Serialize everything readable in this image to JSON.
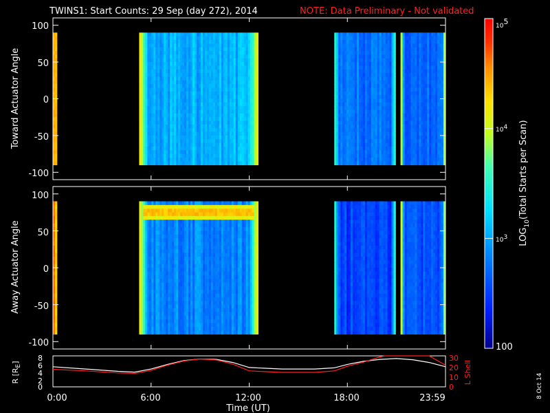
{
  "header": {
    "title": "TWINS1: Start Counts: 29 Sep (day 272), 2014",
    "note": "NOTE: Data Preliminary - Not validated"
  },
  "footer": {
    "date_stamp": "8 Oct 14"
  },
  "colors": {
    "background": "#000000",
    "axes": "#ffffff",
    "note": "#ff2020",
    "r_line": "#ffffff",
    "lshell_line": "#ff2020"
  },
  "chart_data": [
    {
      "type": "heatmap",
      "panel": "toward",
      "ylabel": "Toward Actuator Angle",
      "xlim": [
        0,
        24
      ],
      "ylim": [
        -110,
        110
      ],
      "yticks": [
        100,
        50,
        0,
        -50,
        -100
      ],
      "xticks": [
        0,
        6,
        12,
        18,
        24
      ],
      "colormap": "rainbow",
      "value_scale": "log",
      "data_segments": [
        {
          "start": 0.0,
          "end": 0.25,
          "base_log": 4.45
        },
        {
          "start": 5.27,
          "end": 12.55,
          "base_log": 3.05,
          "edge_log": 4.3
        },
        {
          "start": 17.2,
          "end": 20.95,
          "base_log": 2.75,
          "edge_log": 3.7
        },
        {
          "start": 21.25,
          "end": 24.0,
          "base_log": 2.7,
          "edge_log": 4.4
        }
      ],
      "angle_range": [
        -90,
        90
      ]
    },
    {
      "type": "heatmap",
      "panel": "away",
      "ylabel": "Away Actuator Angle",
      "xlim": [
        0,
        24
      ],
      "ylim": [
        -110,
        110
      ],
      "yticks": [
        100,
        50,
        0,
        -50,
        -100
      ],
      "xticks": [
        0,
        6,
        12,
        18,
        24
      ],
      "colormap": "rainbow",
      "value_scale": "log",
      "data_segments": [
        {
          "start": 0.0,
          "end": 0.25,
          "base_log": 4.5
        },
        {
          "start": 5.27,
          "end": 12.55,
          "base_log": 2.85,
          "edge_log": 4.3,
          "band_angle": 75,
          "band_log": 4.5
        },
        {
          "start": 17.2,
          "end": 20.95,
          "base_log": 2.5,
          "edge_log": 3.7
        },
        {
          "start": 21.25,
          "end": 24.0,
          "base_log": 2.6,
          "edge_log": 4.4
        }
      ],
      "angle_range": [
        -90,
        90
      ]
    },
    {
      "type": "colorbar",
      "label": "LOG10(Total Starts per Scan)",
      "ticks": [
        "10^5",
        "10^4",
        "10^3",
        "100"
      ],
      "range_log": [
        2,
        5
      ]
    },
    {
      "type": "line",
      "panel": "orbit",
      "xlabel": "Time (UT)",
      "xticks": [
        "0:00",
        "6:00",
        "12:00",
        "18:00",
        "23:59"
      ],
      "x_hours": [
        0,
        6,
        12,
        18,
        24
      ],
      "y_left": {
        "label": "R [RE]",
        "ticks": [
          0,
          2,
          4,
          6,
          8
        ],
        "range": [
          0,
          8
        ]
      },
      "y_right": {
        "label": "L Shell",
        "ticks": [
          0,
          10,
          20,
          30
        ],
        "range": [
          0,
          30
        ]
      },
      "series": [
        {
          "name": "R",
          "axis": "left",
          "x": [
            0,
            2,
            4,
            5,
            6,
            7,
            8,
            9,
            10,
            11,
            12,
            14,
            16,
            17.2,
            18,
            19,
            20,
            21,
            22,
            23,
            24
          ],
          "y": [
            5.2,
            4.6,
            4.0,
            3.8,
            4.6,
            5.8,
            6.8,
            7.2,
            7.1,
            6.3,
            5.0,
            4.6,
            4.6,
            4.9,
            5.8,
            6.6,
            7.1,
            7.3,
            7.0,
            6.3,
            5.2
          ]
        },
        {
          "name": "L Shell",
          "axis": "right",
          "x": [
            0,
            2,
            4,
            5,
            6,
            7,
            8,
            9,
            10,
            11,
            12,
            14,
            16,
            17.2,
            18,
            19,
            20,
            20.3,
            23.0,
            24
          ],
          "y": [
            17,
            15.5,
            13.5,
            13,
            16,
            21,
            25,
            27,
            26,
            22,
            15.5,
            14,
            14,
            15.5,
            20,
            24,
            29,
            31,
            31,
            21
          ]
        }
      ]
    }
  ],
  "axis_text": {
    "toward_ylabel": "Toward Actuator Angle",
    "away_ylabel": "Away Actuator Angle",
    "y_ticks": [
      "100",
      "50",
      "0",
      "-50",
      "-100"
    ],
    "time_ticks": [
      "0:00",
      "6:00",
      "12:00",
      "18:00",
      "23:59"
    ],
    "xlabel": "Time (UT)",
    "r_ticks": [
      "8",
      "6",
      "4",
      "2",
      "0"
    ],
    "l_ticks": [
      "30",
      "20",
      "10",
      "0"
    ],
    "r_label": "R [R",
    "r_label_sub": "E",
    "r_label_end": "]",
    "l_label": "L Shell",
    "cb_label_pre": "LOG",
    "cb_label_sub": "10",
    "cb_label_post": "(Total Starts per Scan)",
    "cb_ticks": {
      "t5": "10",
      "t5s": "5",
      "t4": "10",
      "t4s": "4",
      "t3": "10",
      "t3s": "3",
      "t2": "100"
    }
  }
}
